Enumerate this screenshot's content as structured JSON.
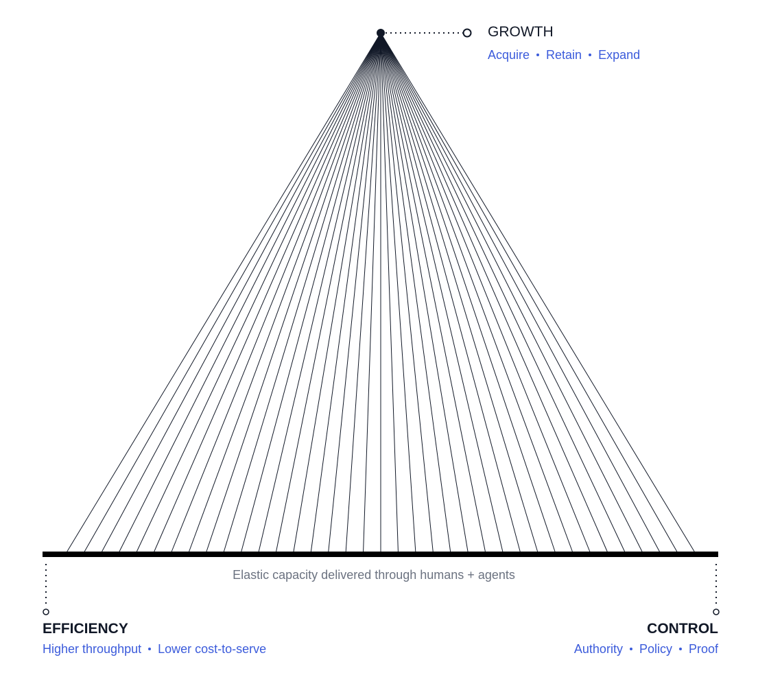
{
  "growth": {
    "title": "GROWTH",
    "items": [
      "Acquire",
      "Retain",
      "Expand"
    ]
  },
  "caption": "Elastic capacity delivered through humans + agents",
  "efficiency": {
    "title": "EFFICIENCY",
    "items": [
      "Higher throughput",
      "Lower cost-to-serve"
    ]
  },
  "control": {
    "title": "CONTROL",
    "items": [
      "Authority",
      "Policy",
      "Proof"
    ]
  }
}
